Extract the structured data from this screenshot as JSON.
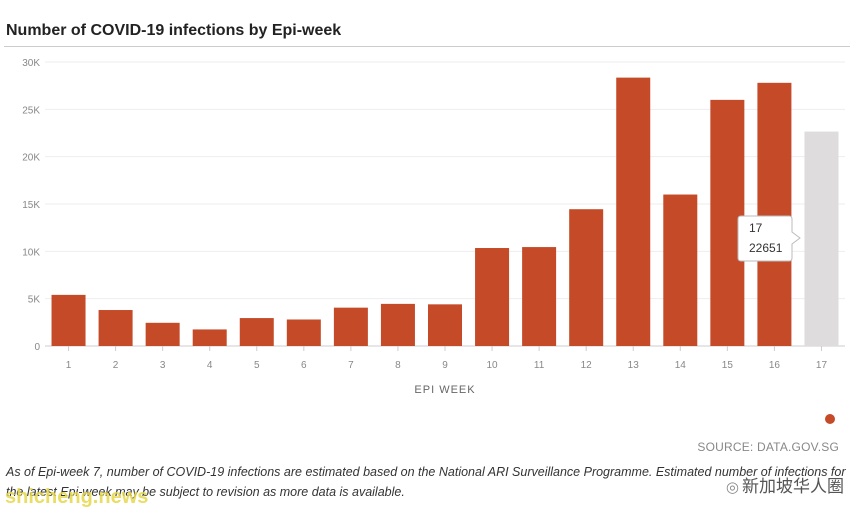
{
  "chart_data": {
    "type": "bar",
    "title": "Number of COVID-19 infections by Epi-week",
    "xlabel": "EPI WEEK",
    "ylabel": "",
    "ylim": [
      0,
      30000
    ],
    "yticks": [
      0,
      5000,
      10000,
      15000,
      20000,
      25000,
      30000
    ],
    "ytick_labels": [
      "0",
      "5K",
      "10K",
      "15K",
      "20K",
      "25K",
      "30K"
    ],
    "categories": [
      "1",
      "2",
      "3",
      "4",
      "5",
      "6",
      "7",
      "8",
      "9",
      "10",
      "11",
      "12",
      "13",
      "14",
      "15",
      "16",
      "17"
    ],
    "values": [
      5400,
      3800,
      2450,
      1750,
      2950,
      2800,
      4050,
      4450,
      4400,
      10350,
      10450,
      14450,
      28350,
      16000,
      26000,
      27800,
      22651
    ],
    "highlight_index": 16,
    "bar_color": "#c44a28",
    "estimated_color": "#dedcdd",
    "grid": true,
    "tooltip": {
      "week": "17",
      "value": "22651"
    }
  },
  "source": "SOURCE: DATA.GOV.SG",
  "footnote": "As of Epi-week 7, number of COVID-19 infections are estimated based on the National ARI Surveillance Programme. Estimated number of infections for the latest Epi-week may be subject to revision as more data is available.",
  "watermarks": {
    "logo_text": "新加坡华人圈",
    "site_text": "shicheng.news"
  }
}
